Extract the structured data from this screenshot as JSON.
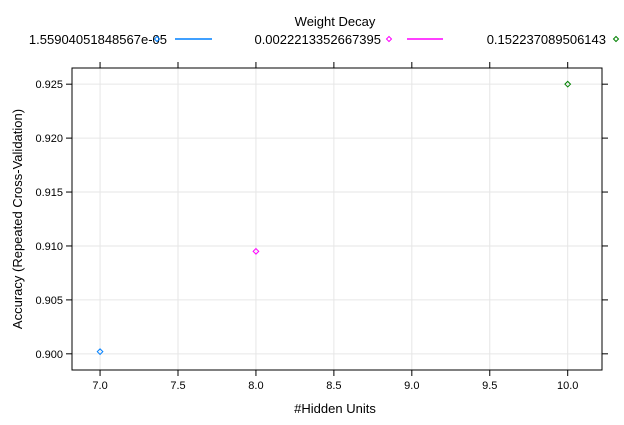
{
  "chart_data": {
    "type": "scatter",
    "legend": {
      "title": "Weight Decay",
      "placement": "top"
    },
    "xlabel": "#Hidden Units",
    "ylabel": "Accuracy (Repeated Cross-Validation)",
    "xlim": [
      6.82,
      10.22
    ],
    "ylim": [
      0.8985,
      0.9265
    ],
    "x_ticks": [
      "7.0",
      "7.5",
      "8.0",
      "8.5",
      "9.0",
      "9.5",
      "10.0"
    ],
    "y_ticks": [
      "0.900",
      "0.905",
      "0.910",
      "0.915",
      "0.920",
      "0.925"
    ],
    "grid": true,
    "series": [
      {
        "name": "1.55904051848567e-05",
        "color": "#0080ff",
        "x": [
          7.0
        ],
        "y": [
          0.9002
        ]
      },
      {
        "name": "0.0022213352667395",
        "color": "#ff00ff",
        "x": [
          8.0
        ],
        "y": [
          0.9095
        ]
      },
      {
        "name": "0.152237089506143",
        "color": "#008000",
        "x": [
          10.0
        ],
        "y": [
          0.925
        ]
      }
    ]
  }
}
